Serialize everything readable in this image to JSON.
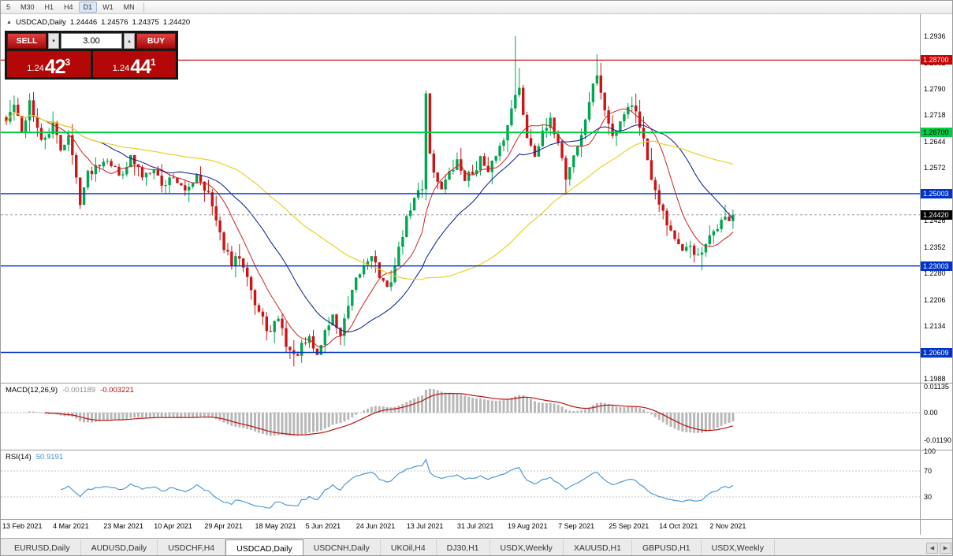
{
  "toolbar": {
    "timeframes": [
      "5",
      "M30",
      "H1",
      "H4",
      "D1",
      "W1",
      "MN"
    ],
    "active": "D1"
  },
  "icons": {
    "symbol_marker": "▲",
    "spinner_up": "▴",
    "spinner_down": "▾",
    "scroll_left": "◀",
    "scroll_right": "▶"
  },
  "chart_header": {
    "symbol": "USDCAD,Daily",
    "open": "1.24446",
    "high": "1.24576",
    "low": "1.24375",
    "close": "1.24420"
  },
  "trade_panel": {
    "sell_label": "SELL",
    "buy_label": "BUY",
    "volume": "3.00",
    "sell_price": {
      "prefix": "1.24",
      "big": "42",
      "sup": "3"
    },
    "buy_price": {
      "prefix": "1.24",
      "big": "44",
      "sup": "1"
    }
  },
  "price_axis": {
    "ticks": [
      "1.2936",
      "1.2862",
      "1.2790",
      "1.2718",
      "1.2644",
      "1.2572",
      "1.2498",
      "1.2426",
      "1.2352",
      "1.2280",
      "1.2206",
      "1.2134",
      "1.2060",
      "1.1988"
    ]
  },
  "current_price": {
    "price": 1.2442,
    "label": "1.24420",
    "bg": "#000000",
    "text": "#ffffff"
  },
  "indicators": {
    "macd": {
      "label": "MACD(12,26,9)",
      "value_main": "-0.001189",
      "value_signal": "-0.003221",
      "axis_labels": [
        "0.01135",
        "0.00",
        "-0.01190"
      ]
    },
    "rsi": {
      "label": "RSI(14)",
      "value": "50.9191",
      "axis_labels": [
        "100",
        "70",
        "30"
      ]
    }
  },
  "chart_data": {
    "type": "candlestick",
    "title": "USDCAD Daily",
    "ylim": [
      1.1988,
      1.2936
    ],
    "candle_count": 188,
    "last_close": 1.2442,
    "up_color": "#00a550",
    "down_color": "#cc1414",
    "x_axis_dates": [
      "13 Feb 2021",
      "4 Mar 2021",
      "23 Mar 2021",
      "10 Apr 2021",
      "29 Apr 2021",
      "18 May 2021",
      "5 Jun 2021",
      "24 Jun 2021",
      "13 Jul 2021",
      "31 Jul 2021",
      "19 Aug 2021",
      "7 Sep 2021",
      "25 Sep 2021",
      "14 Oct 2021",
      "2 Nov 2021"
    ],
    "price_path_anchors": [
      [
        0,
        1.27
      ],
      [
        2,
        1.2748
      ],
      [
        4,
        1.2665
      ],
      [
        6,
        1.2758
      ],
      [
        9,
        1.264
      ],
      [
        12,
        1.2688
      ],
      [
        14,
        1.2625
      ],
      [
        16,
        1.2662
      ],
      [
        19,
        1.2482
      ],
      [
        21,
        1.2555
      ],
      [
        24,
        1.2588
      ],
      [
        26,
        1.2602
      ],
      [
        29,
        1.255
      ],
      [
        32,
        1.2598
      ],
      [
        35,
        1.255
      ],
      [
        38,
        1.2578
      ],
      [
        40,
        1.252
      ],
      [
        43,
        1.2552
      ],
      [
        46,
        1.25
      ],
      [
        49,
        1.2558
      ],
      [
        52,
        1.25
      ],
      [
        55,
        1.2382
      ],
      [
        58,
        1.2302
      ],
      [
        60,
        1.233
      ],
      [
        62,
        1.2282
      ],
      [
        64,
        1.2192
      ],
      [
        66,
        1.215
      ],
      [
        68,
        1.2112
      ],
      [
        70,
        1.216
      ],
      [
        72,
        1.2085
      ],
      [
        74,
        1.2048
      ],
      [
        76,
        1.2075
      ],
      [
        78,
        1.2095
      ],
      [
        80,
        1.2052
      ],
      [
        82,
        1.212
      ],
      [
        84,
        1.216
      ],
      [
        86,
        1.2108
      ],
      [
        88,
        1.2185
      ],
      [
        90,
        1.2258
      ],
      [
        92,
        1.23
      ],
      [
        94,
        1.2338
      ],
      [
        96,
        1.2272
      ],
      [
        98,
        1.2232
      ],
      [
        100,
        1.23
      ],
      [
        102,
        1.239
      ],
      [
        104,
        1.2462
      ],
      [
        106,
        1.2505
      ],
      [
        107,
        1.252
      ],
      [
        108,
        1.278
      ],
      [
        109,
        1.262
      ],
      [
        110,
        1.2555
      ],
      [
        112,
        1.252
      ],
      [
        114,
        1.2552
      ],
      [
        116,
        1.2588
      ],
      [
        118,
        1.2545
      ],
      [
        120,
        1.2558
      ],
      [
        122,
        1.2598
      ],
      [
        124,
        1.255
      ],
      [
        126,
        1.2612
      ],
      [
        128,
        1.2648
      ],
      [
        130,
        1.2748
      ],
      [
        132,
        1.2788
      ],
      [
        134,
        1.266
      ],
      [
        136,
        1.2615
      ],
      [
        138,
        1.2662
      ],
      [
        140,
        1.2698
      ],
      [
        142,
        1.265
      ],
      [
        144,
        1.2545
      ],
      [
        146,
        1.2608
      ],
      [
        148,
        1.2658
      ],
      [
        150,
        1.2758
      ],
      [
        152,
        1.2832
      ],
      [
        154,
        1.2728
      ],
      [
        156,
        1.2658
      ],
      [
        158,
        1.2705
      ],
      [
        160,
        1.2745
      ],
      [
        162,
        1.2735
      ],
      [
        164,
        1.2648
      ],
      [
        166,
        1.2548
      ],
      [
        168,
        1.2482
      ],
      [
        170,
        1.242
      ],
      [
        172,
        1.2378
      ],
      [
        174,
        1.2332
      ],
      [
        176,
        1.2358
      ],
      [
        178,
        1.2322
      ],
      [
        180,
        1.2352
      ],
      [
        182,
        1.2398
      ],
      [
        184,
        1.2425
      ],
      [
        186,
        1.2432
      ],
      [
        187,
        1.2442
      ]
    ],
    "wick_overrides": [
      {
        "i": 19,
        "l": 1.2458
      },
      {
        "i": 74,
        "l": 1.2022
      },
      {
        "i": 76,
        "l": 1.2032
      },
      {
        "i": 131,
        "h": 1.2936
      },
      {
        "i": 132,
        "h": 1.2848
      },
      {
        "i": 144,
        "l": 1.2497
      },
      {
        "i": 152,
        "h": 1.2886
      },
      {
        "i": 153,
        "h": 1.2862
      },
      {
        "i": 179,
        "l": 1.2288
      }
    ],
    "moving_averages": [
      {
        "period": 10,
        "color": "#cc2222",
        "width": 1
      },
      {
        "period": 25,
        "color": "#001a8c",
        "width": 1
      },
      {
        "period": 60,
        "color": "#e8d22a",
        "width": 1.2
      }
    ],
    "horizontal_levels": [
      {
        "price": 1.287,
        "label": "1.28700",
        "color": "#cc0000",
        "text_color": "#ffffff",
        "weight": 1.2
      },
      {
        "price": 1.267,
        "label": "1.26700",
        "color": "#00cc44",
        "text_color": "#000000",
        "weight": 2
      },
      {
        "price": 1.25003,
        "label": "1.25003",
        "color": "#0033cc",
        "text_color": "#ffffff",
        "weight": 1.4
      },
      {
        "price": 1.23003,
        "label": "1.23003",
        "color": "#0033cc",
        "text_color": "#ffffff",
        "weight": 1.4
      },
      {
        "price": 1.20609,
        "label": "1.20609",
        "color": "#0033cc",
        "text_color": "#ffffff",
        "weight": 1.4
      }
    ],
    "macd": {
      "fast": 12,
      "slow": 26,
      "signal_period": 9,
      "histogram_color": "#b8b8b8",
      "signal_color": "#bb1111",
      "axis_max": 0.01135,
      "axis_min": -0.0119
    },
    "rsi": {
      "period": 14,
      "levels": [
        70,
        30
      ],
      "color": "#4090d8"
    }
  },
  "tabs": {
    "items": [
      "EURUSD,Daily",
      "AUDUSD,Daily",
      "USDCHF,H4",
      "USDCAD,Daily",
      "USDCNH,Daily",
      "UKOil,H4",
      "DJ30,H1",
      "USDX,Weekly",
      "XAUUSD,H1",
      "GBPUSD,H1",
      "USDX,Weekly"
    ],
    "active_index": 3
  }
}
